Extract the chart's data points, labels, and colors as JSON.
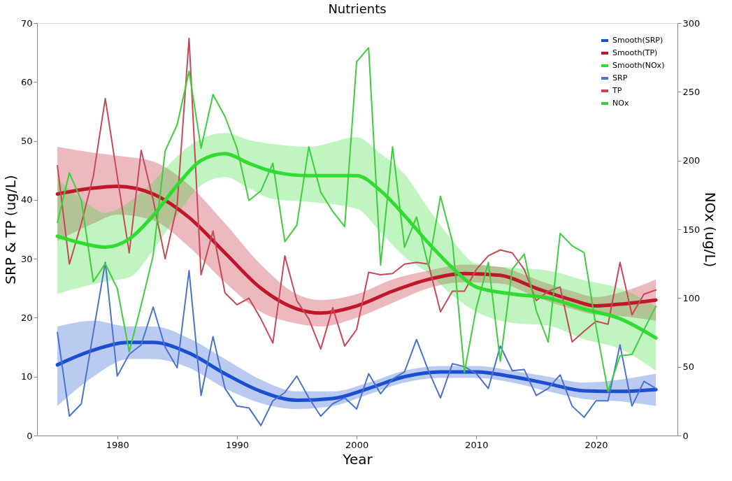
{
  "chart_data": {
    "type": "line",
    "title": "Nutrients",
    "xlabel": "Year",
    "ylabel": "SRP & TP (ug/L)",
    "y2label": "NOx (ug/L)",
    "x": [
      1975,
      1976,
      1977,
      1978,
      1979,
      1980,
      1981,
      1982,
      1983,
      1984,
      1985,
      1986,
      1987,
      1988,
      1989,
      1990,
      1991,
      1992,
      1993,
      1994,
      1995,
      1996,
      1997,
      1998,
      1999,
      2000,
      2001,
      2002,
      2003,
      2004,
      2005,
      2006,
      2007,
      2008,
      2009,
      2010,
      2011,
      2012,
      2013,
      2014,
      2015,
      2016,
      2017,
      2018,
      2019,
      2020,
      2021,
      2022,
      2023,
      2024,
      2025
    ],
    "xlim": [
      1973.3,
      2026.8
    ],
    "xticks": [
      1980,
      1990,
      2000,
      2010,
      2020
    ],
    "ylim": [
      0,
      70
    ],
    "yticks": [
      0,
      10,
      20,
      30,
      40,
      50,
      60,
      70
    ],
    "y2lim": [
      0,
      300
    ],
    "y2ticks": [
      0,
      50,
      100,
      150,
      200,
      250,
      300
    ],
    "grid": false,
    "legend": "top right",
    "marker": "none",
    "line_style": "solid",
    "series": [
      {
        "name": "Smooth(SRP)",
        "color": "#1a4fcf",
        "x": [
          1975,
          1978,
          1981,
          1983,
          1986,
          1989,
          1992,
          1995,
          1998,
          2001,
          2004,
          2007,
          2010,
          2013,
          2016,
          2019,
          2022,
          2025
        ],
        "values": [
          12,
          14.5,
          15.8,
          15.8,
          14,
          10.5,
          7.5,
          6,
          6.3,
          8,
          10,
          10.8,
          10.8,
          10,
          8.8,
          7.6,
          7.5,
          7.8
        ],
        "lower": [
          5,
          10,
          13,
          13,
          11.5,
          8,
          5.5,
          4.5,
          5,
          7,
          9,
          9.8,
          9.8,
          9,
          7.5,
          6.2,
          5.8,
          5
        ],
        "upper": [
          18.5,
          19.5,
          18.5,
          18.5,
          16.5,
          13,
          9.5,
          7.5,
          7.5,
          9,
          11,
          11.8,
          11.8,
          11,
          10,
          9,
          9.5,
          10.5
        ]
      },
      {
        "name": "Smooth(TP)",
        "color": "#c0182b",
        "x": [
          1975,
          1978,
          1980,
          1983,
          1986,
          1989,
          1992,
          1995,
          1997,
          2000,
          2003,
          2006,
          2009,
          2012,
          2015,
          2018,
          2020,
          2022,
          2025
        ],
        "values": [
          41,
          42,
          42.3,
          41,
          37,
          31,
          25,
          21.5,
          20.8,
          22,
          24.5,
          26.5,
          27.5,
          27.2,
          25,
          23,
          22,
          22.3,
          23
        ],
        "lower": [
          33,
          36,
          37.5,
          36.5,
          32,
          26,
          21,
          19,
          18.5,
          20,
          22.5,
          25,
          26,
          25.8,
          23.5,
          21.5,
          20.5,
          20.3,
          19.5
        ],
        "upper": [
          49,
          48,
          47.5,
          46.5,
          42.5,
          36,
          29,
          24,
          23,
          24,
          26.5,
          28,
          29,
          28.6,
          26.5,
          24.5,
          23.5,
          24.3,
          26.5
        ]
      },
      {
        "name": "Smooth(NOx)",
        "color": "#2fdc2f",
        "axis": "y2",
        "x": [
          1975,
          1977,
          1979,
          1981,
          1983,
          1985,
          1987,
          1989,
          1991,
          1993,
          1996,
          2000,
          2002,
          2004,
          2006,
          2008,
          2010,
          2013,
          2016,
          2019,
          2022,
          2025
        ],
        "values": [
          145,
          140,
          137,
          143,
          160,
          182,
          200,
          205,
          198,
          192,
          189,
          189,
          178,
          160,
          140,
          122,
          108,
          103,
          100,
          92,
          85,
          71
        ],
        "lower": [
          103,
          108,
          112,
          115,
          135,
          160,
          182,
          188,
          180,
          172,
          170,
          165,
          148,
          130,
          118,
          102,
          90,
          82,
          80,
          70,
          63,
          47
        ],
        "upper": [
          187,
          172,
          162,
          170,
          185,
          203,
          216,
          220,
          215,
          212,
          210,
          217,
          205,
          190,
          165,
          142,
          125,
          122,
          120,
          113,
          107,
          94
        ]
      },
      {
        "name": "SRP",
        "color": "#4a72d0",
        "values": [
          17.5,
          3.3,
          5.4,
          17.5,
          29.4,
          10.1,
          13.8,
          15.4,
          21.8,
          15,
          11.5,
          28,
          6.8,
          16.8,
          8,
          5,
          4.7,
          1.7,
          5.9,
          7.3,
          10.1,
          6.4,
          3.3,
          5.4,
          6.4,
          4.5,
          10.5,
          7.1,
          9.6,
          10.8,
          16.3,
          11,
          6.4,
          12.2,
          11.7,
          10.5,
          8,
          15.2,
          11,
          11.2,
          6.8,
          8,
          10.3,
          5,
          3.1,
          5.9,
          5.9,
          15.4,
          5,
          9.2,
          8
        ]
      },
      {
        "name": "TP",
        "color": "#c8485a",
        "values": [
          45.8,
          29.1,
          36,
          44,
          57.2,
          44,
          31,
          48.4,
          40,
          30,
          39,
          67.4,
          27.3,
          34.7,
          24.2,
          22.2,
          23.3,
          19.8,
          15.7,
          30.5,
          22.9,
          19.8,
          14.7,
          21.7,
          15.2,
          18,
          27.7,
          27.3,
          27.5,
          29.1,
          29.4,
          29.1,
          21,
          24.5,
          24.5,
          28.2,
          30.5,
          31.5,
          31,
          28.2,
          22.9,
          24.5,
          25.2,
          15.9,
          17.7,
          19.4,
          18.9,
          29.4,
          20.5,
          24,
          24.7
        ]
      },
      {
        "name": "NOx",
        "color": "#3ccf3c",
        "axis": "y2",
        "values": [
          155,
          191,
          171,
          112,
          125,
          107,
          61,
          95,
          131,
          207,
          226,
          265,
          209,
          248,
          232,
          209,
          171,
          178,
          198,
          141,
          153,
          210,
          177,
          163,
          152,
          272,
          282,
          124,
          210,
          137,
          159,
          123,
          174,
          141,
          46,
          93,
          126,
          54,
          121,
          132,
          91,
          68,
          147,
          138,
          133,
          79,
          32,
          58,
          59,
          77,
          94
        ]
      }
    ]
  }
}
